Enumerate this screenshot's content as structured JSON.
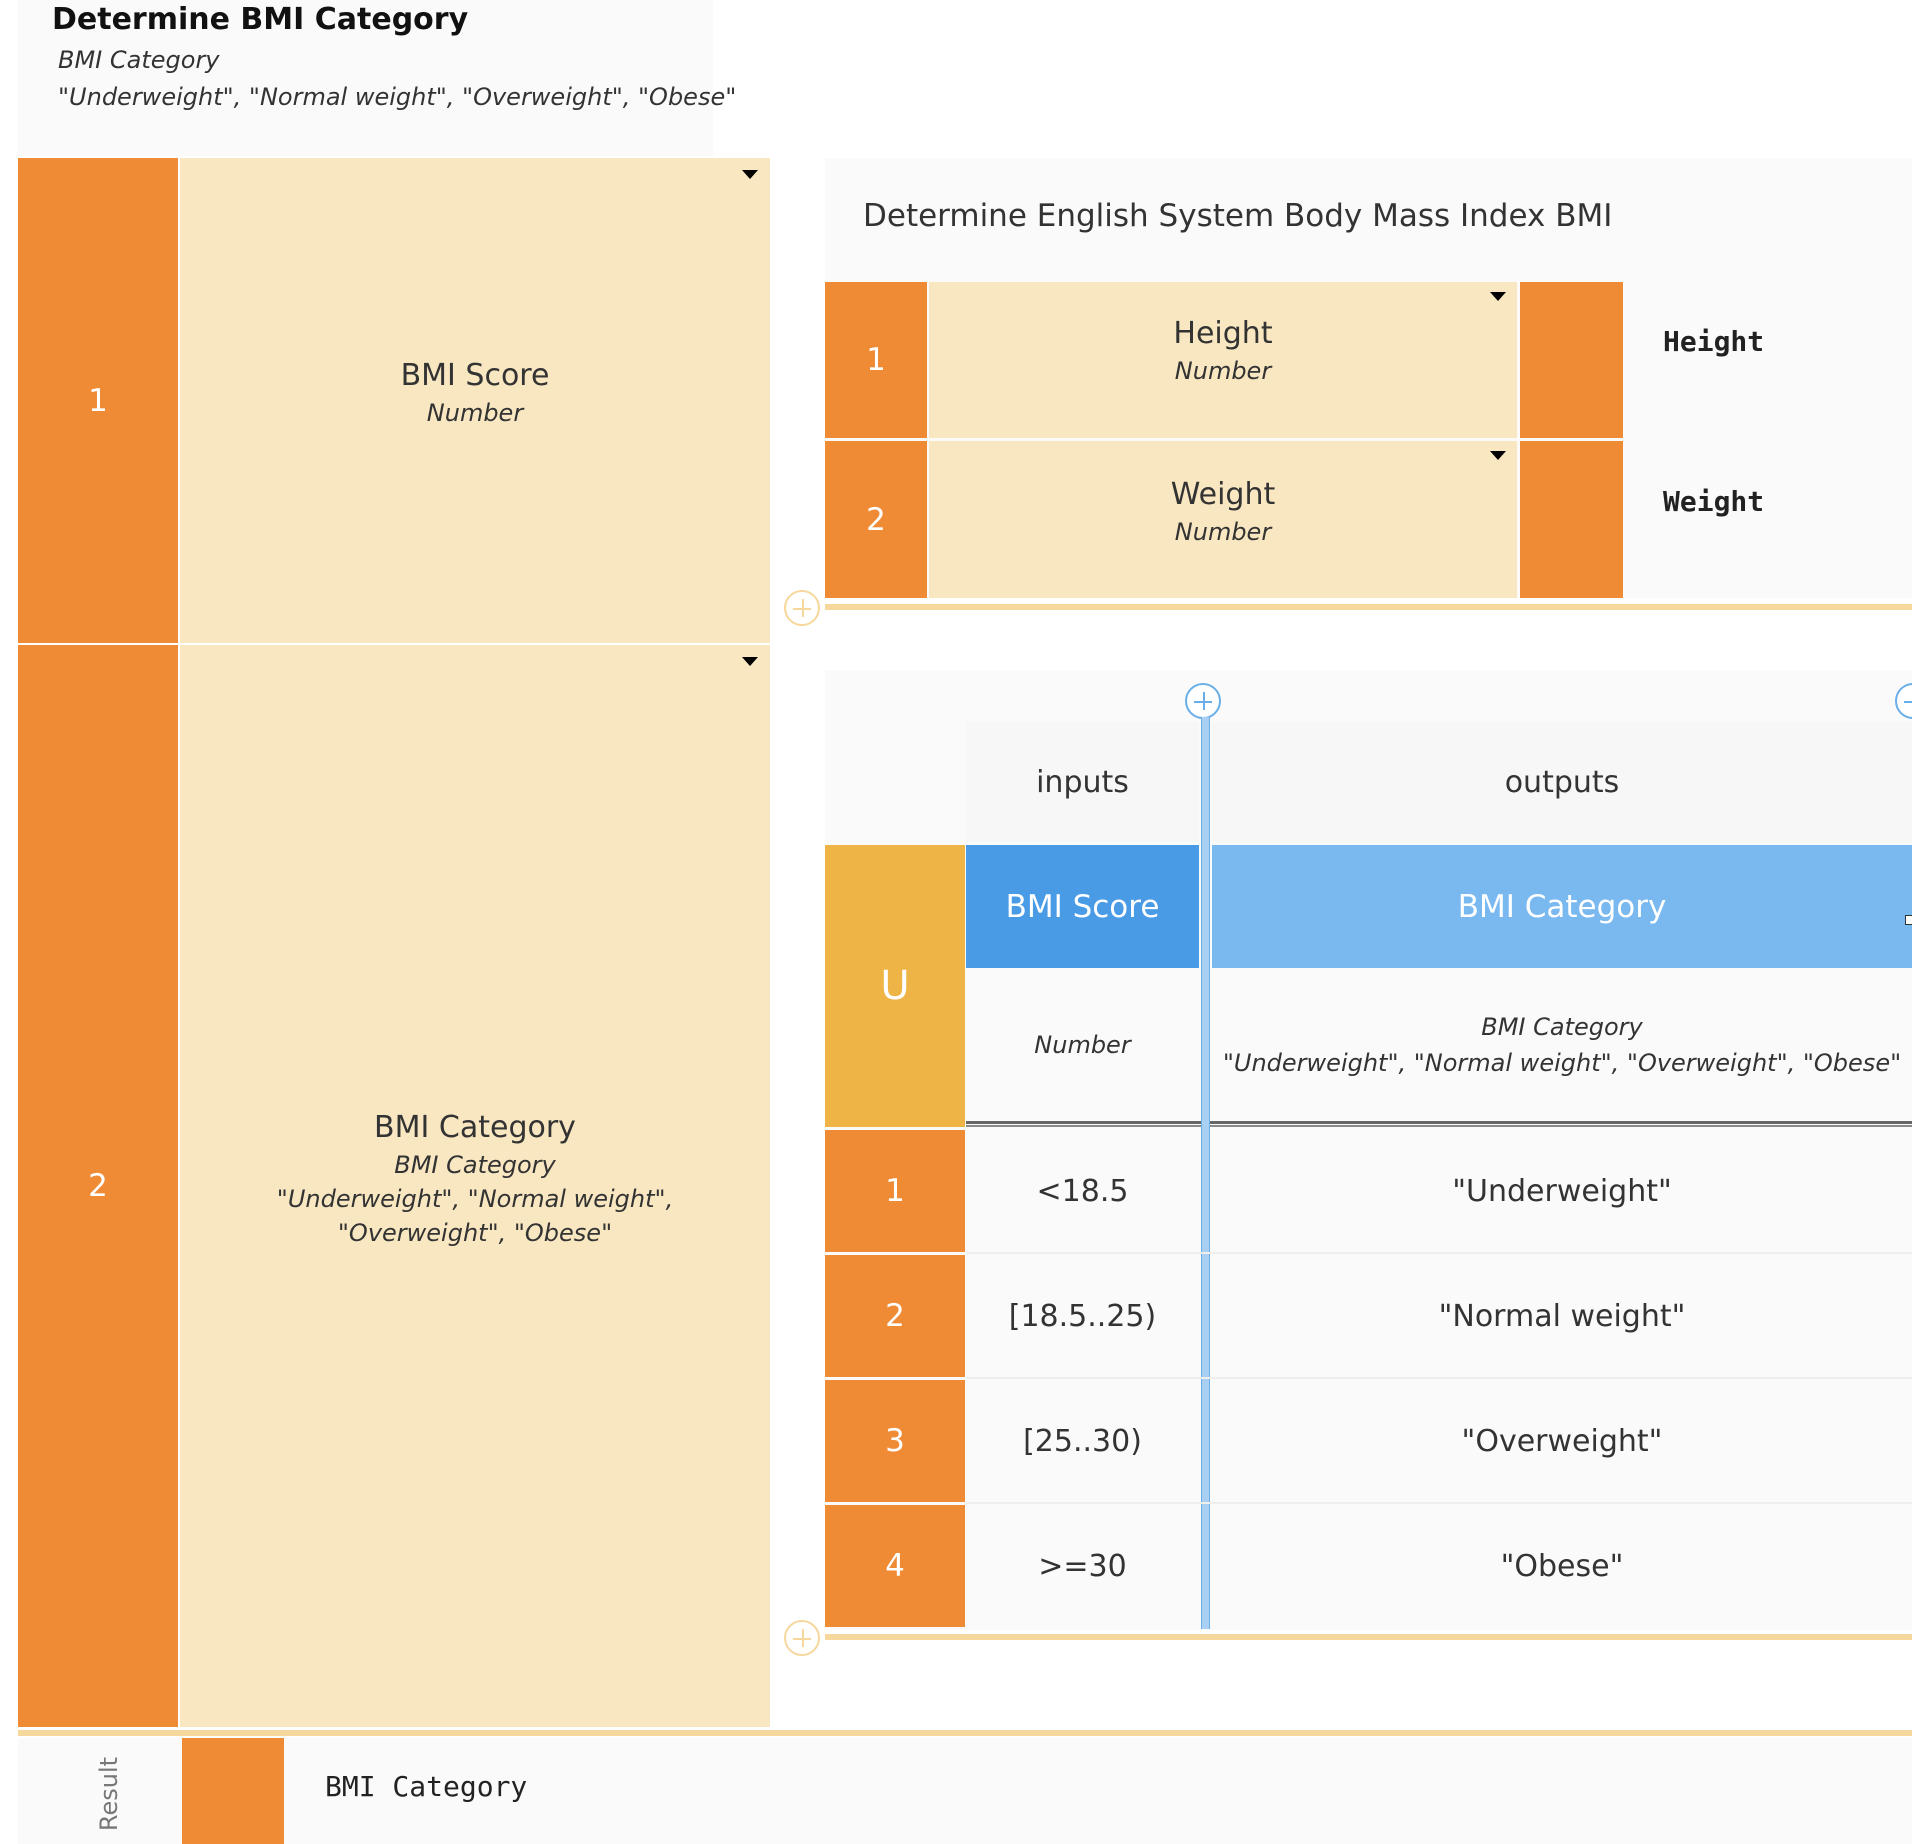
{
  "context": {
    "title": "Determine BMI Category",
    "type_name": "BMI Category",
    "allowed_values": "\"Underweight\", \"Normal weight\", \"Overweight\", \"Obese\""
  },
  "entries": [
    {
      "index": "1",
      "name": "BMI Score",
      "type": "Number"
    },
    {
      "index": "2",
      "name": "BMI Category",
      "type": "BMI Category",
      "allowed_line1": "\"Underweight\", \"Normal weight\",",
      "allowed_line2": "\"Overweight\", \"Obese\""
    }
  ],
  "bmi_context": {
    "title": "Determine English System Body Mass Index BMI",
    "rows": [
      {
        "index": "1",
        "name": "Height",
        "type": "Number",
        "value": "Height"
      },
      {
        "index": "2",
        "name": "Weight",
        "type": "Number",
        "value": "Weight"
      }
    ]
  },
  "decision_table": {
    "hit_policy": "U",
    "inputs_label": "inputs",
    "outputs_label": "outputs",
    "input_column": {
      "name": "BMI Score",
      "type": "Number"
    },
    "output_column": {
      "name": "BMI Category",
      "type": "BMI Category",
      "allowed": "\"Underweight\", \"Normal weight\", \"Overweight\", \"Obese\""
    },
    "rules": [
      {
        "index": "1",
        "input": "<18.5",
        "output": "\"Underweight\""
      },
      {
        "index": "2",
        "input": "[18.5..25)",
        "output": "\"Normal weight\""
      },
      {
        "index": "3",
        "input": "[25..30)",
        "output": "\"Overweight\""
      },
      {
        "index": "4",
        "input": ">=30",
        "output": "\"Obese\""
      }
    ]
  },
  "result": {
    "label": "Result",
    "value": "BMI Category"
  },
  "colors": {
    "orange": "#ef8a35",
    "cream": "#f8e7c1",
    "hit_policy": "#eeb445",
    "input_header": "#4a9be6",
    "output_header": "#7ab8f0",
    "separator_blue": "#a9d0f2",
    "separator_gold": "#f6d79c"
  }
}
